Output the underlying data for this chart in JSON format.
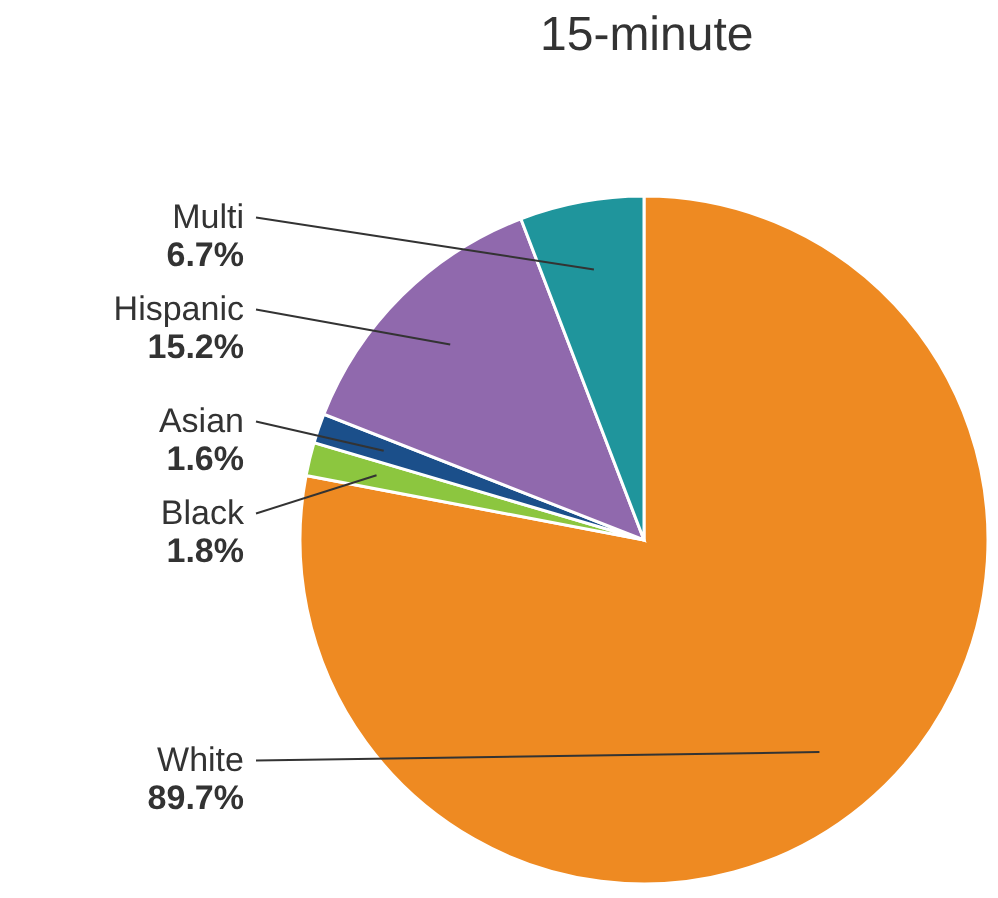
{
  "chart_data": {
    "type": "pie",
    "title": "15-minute",
    "categories": [
      "White",
      "Black",
      "Asian",
      "Hispanic",
      "Multi"
    ],
    "values": [
      89.7,
      1.8,
      1.6,
      15.2,
      6.7
    ],
    "colors": [
      "#ee8a22",
      "#8cc63f",
      "#1b4f8a",
      "#9069ad",
      "#1f959c"
    ],
    "value_labels": [
      "89.7%",
      "1.8%",
      "1.6%",
      "15.2%",
      "6.7%"
    ]
  }
}
